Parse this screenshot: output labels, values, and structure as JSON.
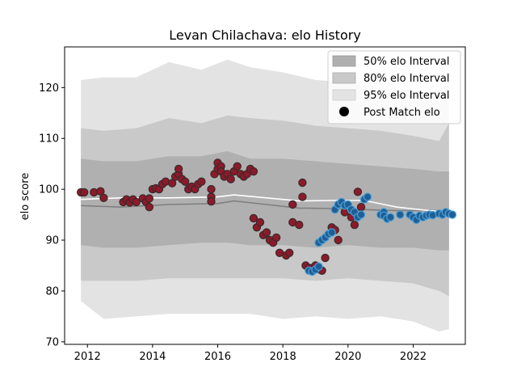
{
  "chart_data": {
    "type": "scatter",
    "title": "Levan Chilachava: elo History",
    "xlabel": "",
    "ylabel": "elo score",
    "xlim": [
      2011.3,
      2023.6
    ],
    "ylim": [
      69.5,
      128
    ],
    "xticks": [
      2012,
      2014,
      2016,
      2018,
      2020,
      2022
    ],
    "xtick_labels": [
      "2012",
      "2014",
      "2016",
      "2018",
      "2020",
      "2022"
    ],
    "yticks": [
      70,
      80,
      90,
      100,
      110,
      120
    ],
    "ytick_labels": [
      "70",
      "80",
      "90",
      "100",
      "110",
      "120"
    ],
    "legend": {
      "placement": "top-right",
      "entries": [
        "50% elo Interval",
        "80% elo Interval",
        "95% elo Interval",
        "Post Match elo"
      ]
    },
    "colors": {
      "band50": "#b0b0b0",
      "band80": "#c9c9c9",
      "band95": "#e3e3e3",
      "median_line": "#808080",
      "mean_line": "#ffffff",
      "point_red": "#8b1a2b",
      "point_blue": "#1f5f95",
      "edge_dark": "#3a2a2a",
      "edge_blue": "#4a9fd8"
    },
    "bands": {
      "x": [
        2011.8,
        2012.5,
        2013.5,
        2014.5,
        2015.5,
        2016.3,
        2017.0,
        2018.0,
        2019.0,
        2020.0,
        2021.0,
        2022.0,
        2022.8,
        2023.1
      ],
      "band95_hi": [
        121.5,
        122.0,
        122.0,
        125.0,
        123.5,
        125.5,
        124.0,
        123.0,
        121.5,
        121.0,
        120.0,
        119.5,
        118.5,
        121.5
      ],
      "band95_lo": [
        78.0,
        74.5,
        75.0,
        75.5,
        75.5,
        75.5,
        75.5,
        74.5,
        75.0,
        74.5,
        75.0,
        74.0,
        72.0,
        72.5
      ],
      "band80_hi": [
        112.0,
        111.5,
        112.0,
        114.0,
        113.0,
        114.5,
        114.0,
        113.5,
        112.5,
        112.0,
        111.5,
        110.5,
        109.5,
        113.0
      ],
      "band80_lo": [
        82.0,
        82.0,
        82.0,
        82.5,
        82.5,
        82.5,
        82.5,
        82.5,
        82.0,
        82.5,
        82.0,
        81.5,
        80.0,
        79.0
      ],
      "band50_hi": [
        106.0,
        105.5,
        105.5,
        106.5,
        106.5,
        107.5,
        106.0,
        106.0,
        105.5,
        105.0,
        104.5,
        104.0,
        103.5,
        103.5
      ],
      "band50_lo": [
        89.0,
        88.5,
        88.5,
        89.0,
        89.5,
        89.5,
        89.0,
        89.0,
        88.5,
        89.0,
        88.5,
        88.5,
        88.0,
        88.0
      ]
    },
    "median_line": {
      "x": [
        2011.8,
        2013.0,
        2014.5,
        2016.0,
        2016.5,
        2017.5,
        2018.5,
        2019.5,
        2020.5,
        2021.5,
        2022.5,
        2023.1
      ],
      "y": [
        96.8,
        96.5,
        97.0,
        97.2,
        97.7,
        97.0,
        96.3,
        96.2,
        96.0,
        95.8,
        95.8,
        95.8
      ]
    },
    "mean_line": {
      "x": [
        2011.8,
        2013.0,
        2014.5,
        2016.0,
        2016.5,
        2017.5,
        2018.5,
        2019.5,
        2020.5,
        2021.5,
        2022.5,
        2023.1
      ],
      "y": [
        98.0,
        98.3,
        98.3,
        98.5,
        98.9,
        98.3,
        97.7,
        97.8,
        97.8,
        96.5,
        95.8,
        95.5
      ]
    },
    "series": [
      {
        "values": [
          [
            2011.8,
            99.4
          ],
          [
            2011.9,
            99.4
          ],
          [
            2012.2,
            99.4
          ],
          [
            2012.4,
            99.6
          ],
          [
            2012.5,
            98.3
          ],
          [
            2013.1,
            97.5
          ],
          [
            2013.2,
            98.0
          ],
          [
            2013.3,
            97.4
          ],
          [
            2013.4,
            98.0
          ],
          [
            2013.5,
            97.5
          ],
          [
            2013.7,
            98.2
          ],
          [
            2013.8,
            97.5
          ],
          [
            2013.9,
            98.2
          ],
          [
            2013.9,
            96.5
          ],
          [
            2014.0,
            100.0
          ],
          [
            2014.1,
            100.2
          ],
          [
            2014.2,
            100.0
          ],
          [
            2014.3,
            101.0
          ],
          [
            2014.4,
            101.5
          ],
          [
            2014.6,
            101.2
          ],
          [
            2014.7,
            102.5
          ],
          [
            2014.8,
            103.0
          ],
          [
            2014.8,
            104.0
          ],
          [
            2014.9,
            102.0
          ],
          [
            2015.0,
            101.5
          ],
          [
            2015.1,
            100.0
          ],
          [
            2015.2,
            100.5
          ],
          [
            2015.3,
            100.0
          ],
          [
            2015.4,
            101.0
          ],
          [
            2015.5,
            101.5
          ],
          [
            2015.8,
            98.5
          ],
          [
            2015.8,
            97.6
          ],
          [
            2015.8,
            100.0
          ],
          [
            2015.9,
            103.0
          ],
          [
            2016.0,
            104.0
          ],
          [
            2016.0,
            105.2
          ],
          [
            2016.1,
            104.5
          ],
          [
            2016.1,
            103.5
          ],
          [
            2016.2,
            102.5
          ],
          [
            2016.3,
            103.0
          ],
          [
            2016.4,
            102.0
          ],
          [
            2016.5,
            103.5
          ],
          [
            2016.6,
            104.5
          ],
          [
            2016.7,
            103.0
          ],
          [
            2016.8,
            102.5
          ],
          [
            2016.9,
            103.0
          ],
          [
            2017.0,
            104.0
          ],
          [
            2017.1,
            103.5
          ],
          [
            2017.1,
            94.3
          ],
          [
            2017.2,
            92.5
          ],
          [
            2017.3,
            93.5
          ],
          [
            2017.4,
            91.0
          ],
          [
            2017.5,
            91.5
          ],
          [
            2017.6,
            90.0
          ],
          [
            2017.7,
            89.5
          ],
          [
            2017.8,
            90.5
          ],
          [
            2017.9,
            87.5
          ],
          [
            2018.1,
            87.0
          ],
          [
            2018.2,
            87.5
          ],
          [
            2018.3,
            97.0
          ],
          [
            2018.3,
            93.5
          ],
          [
            2018.5,
            93.0
          ],
          [
            2018.6,
            101.3
          ],
          [
            2018.6,
            98.5
          ],
          [
            2018.7,
            85.0
          ],
          [
            2018.8,
            84.5
          ],
          [
            2018.9,
            84.5
          ],
          [
            2019.0,
            85.0
          ],
          [
            2019.1,
            84.3
          ],
          [
            2019.2,
            84.0
          ],
          [
            2019.3,
            86.5
          ],
          [
            2019.5,
            92.5
          ],
          [
            2019.6,
            92.0
          ],
          [
            2019.7,
            90.0
          ],
          [
            2019.9,
            95.5
          ],
          [
            2020.1,
            94.5
          ],
          [
            2020.2,
            93.0
          ],
          [
            2020.3,
            99.5
          ],
          [
            2020.4,
            96.5
          ]
        ]
      },
      {
        "values": [
          [
            2018.8,
            84.0
          ],
          [
            2018.9,
            83.8
          ],
          [
            2019.0,
            84.2
          ],
          [
            2019.1,
            84.8
          ],
          [
            2019.1,
            89.5
          ],
          [
            2019.2,
            90.0
          ],
          [
            2019.3,
            90.5
          ],
          [
            2019.4,
            91.2
          ],
          [
            2019.5,
            91.5
          ],
          [
            2019.6,
            96.0
          ],
          [
            2019.7,
            97.0
          ],
          [
            2019.8,
            97.5
          ],
          [
            2019.9,
            96.8
          ],
          [
            2020.0,
            97.0
          ],
          [
            2020.1,
            96.0
          ],
          [
            2020.2,
            95.5
          ],
          [
            2020.3,
            94.5
          ],
          [
            2020.4,
            95.0
          ],
          [
            2020.5,
            98.0
          ],
          [
            2020.6,
            98.5
          ],
          [
            2021.0,
            95.0
          ],
          [
            2021.1,
            95.5
          ],
          [
            2021.1,
            94.8
          ],
          [
            2021.2,
            94.2
          ],
          [
            2021.3,
            94.5
          ],
          [
            2021.6,
            95.0
          ],
          [
            2021.9,
            95.0
          ],
          [
            2022.0,
            94.5
          ],
          [
            2022.1,
            94.0
          ],
          [
            2022.2,
            94.8
          ],
          [
            2022.3,
            94.5
          ],
          [
            2022.4,
            94.8
          ],
          [
            2022.5,
            95.0
          ],
          [
            2022.6,
            94.9
          ],
          [
            2022.8,
            95.2
          ],
          [
            2022.9,
            95.0
          ],
          [
            2023.0,
            95.5
          ],
          [
            2023.1,
            95.2
          ],
          [
            2023.2,
            95.0
          ]
        ]
      }
    ]
  }
}
